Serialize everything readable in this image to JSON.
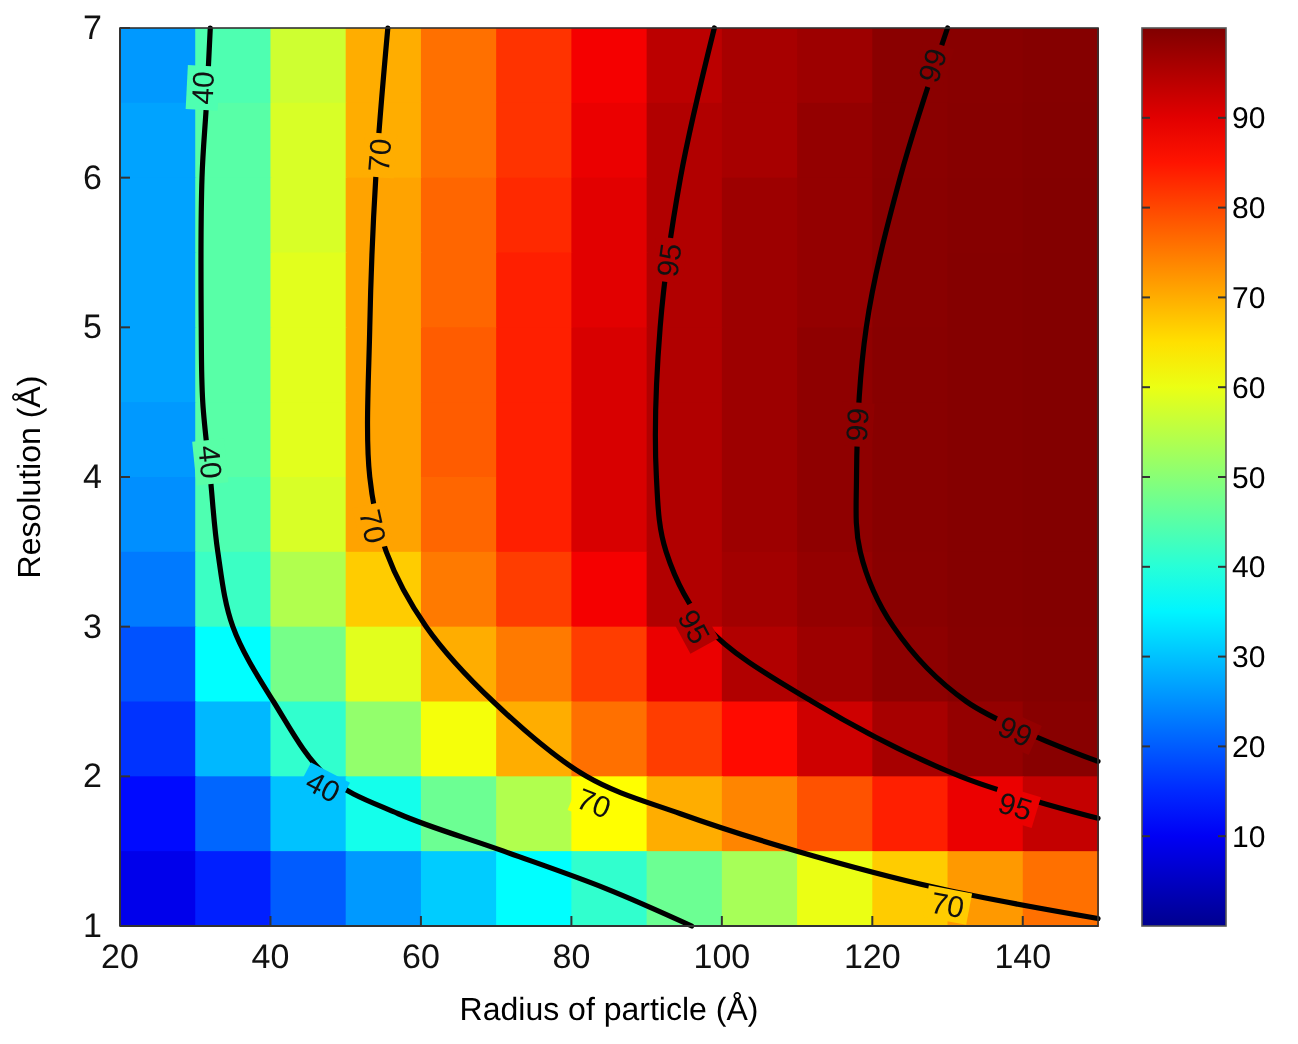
{
  "chart_data": {
    "type": "heatmap",
    "xlabel": "Radius of particle (Å)",
    "ylabel": "Resolution (Å)",
    "x": [
      25,
      35,
      45,
      55,
      65,
      75,
      85,
      95,
      105,
      115,
      125,
      135,
      145
    ],
    "y": [
      6.75,
      6.25,
      5.75,
      5.25,
      4.75,
      4.25,
      3.75,
      3.25,
      2.75,
      2.25,
      1.75,
      1.25
    ],
    "cells": [
      [
        26,
        44,
        57,
        70,
        76,
        82,
        88,
        94,
        96,
        97,
        99,
        99.2,
        99.5
      ],
      [
        27,
        45,
        58,
        70,
        76,
        82,
        89,
        95,
        96,
        98,
        99,
        99.3,
        99.6
      ],
      [
        27,
        45,
        58,
        71,
        77,
        83,
        90,
        95,
        97,
        98,
        99.1,
        99.4,
        99.7
      ],
      [
        27,
        45,
        59,
        71,
        77,
        84,
        90,
        95,
        97,
        98,
        99.1,
        99.5,
        99.7
      ],
      [
        27,
        45,
        59,
        71,
        78,
        84,
        91,
        95,
        97,
        98.5,
        99.2,
        99.5,
        99.7
      ],
      [
        26,
        45,
        59,
        71,
        78,
        84,
        91,
        95,
        97,
        98.5,
        99.2,
        99.5,
        99.7
      ],
      [
        25,
        44,
        58,
        71,
        77,
        84,
        91,
        95,
        97,
        98.5,
        99.2,
        99.5,
        99.7
      ],
      [
        23,
        42,
        54,
        67,
        75,
        81,
        88,
        95,
        96.5,
        98,
        99.1,
        99.5,
        99.7
      ],
      [
        19,
        36,
        48,
        59,
        70,
        75,
        81,
        89,
        95,
        97,
        98.7,
        99.4,
        99.6
      ],
      [
        16,
        29,
        41,
        51,
        61,
        70,
        76,
        81,
        86,
        92,
        96,
        98,
        99.2
      ],
      [
        12,
        21,
        30,
        38,
        47,
        54,
        62,
        70,
        74,
        79,
        84,
        89,
        93
      ],
      [
        9,
        14,
        20,
        26,
        31,
        36,
        41,
        47,
        53,
        60,
        67,
        72,
        76
      ]
    ],
    "xlim": [
      20,
      150
    ],
    "ylim": [
      1,
      7
    ],
    "xticks": [
      20,
      40,
      60,
      80,
      100,
      120,
      140
    ],
    "yticks": [
      1,
      2,
      3,
      4,
      5,
      6,
      7
    ],
    "clim": [
      0,
      100
    ],
    "cticks": [
      10,
      20,
      30,
      40,
      50,
      60,
      70,
      80,
      90
    ],
    "series": [
      {
        "type": "line",
        "color": "#000000",
        "x": [
          32,
          31.5,
          30.9,
          30.8,
          31,
          32,
          33,
          35,
          40.4,
          47.5,
          57,
          71,
          84.6,
          96
        ],
        "values": [
          7,
          6.5,
          6,
          5,
          4.5,
          4,
          3.5,
          3,
          2.5,
          2,
          1.75,
          1.5,
          1.25,
          1
        ]
      },
      {
        "type": "line",
        "color": "#000000",
        "x": [
          55.6,
          54,
          53.2,
          53.2,
          55.4,
          60.7,
          69.6,
          82,
          94.5,
          110,
          129,
          150
        ],
        "values": [
          7,
          6,
          5,
          4,
          3.5,
          3,
          2.5,
          2,
          1.75,
          1.5,
          1.25,
          1.05
        ]
      },
      {
        "type": "line",
        "color": "#000000",
        "x": [
          99,
          94.5,
          91.8,
          91.3,
          92.6,
          98,
          112,
          131.7,
          150
        ],
        "values": [
          7,
          6,
          5,
          4,
          3.5,
          3,
          2.5,
          2,
          1.72
        ]
      },
      {
        "type": "line",
        "color": "#000000",
        "x": [
          130,
          123.7,
          119.2,
          117.9,
          118.4,
          122.8,
          132.5,
          150
        ],
        "values": [
          7,
          6,
          5,
          4,
          3.5,
          3,
          2.5,
          2.1
        ]
      }
    ],
    "annotations": [
      {
        "text": "40",
        "x": 31,
        "y": 6.6
      },
      {
        "text": "40",
        "x": 32,
        "y": 4.1
      },
      {
        "text": "40",
        "x": 47,
        "y": 1.93
      },
      {
        "text": "70",
        "x": 54.5,
        "y": 6.15
      },
      {
        "text": "70",
        "x": 53.6,
        "y": 3.67
      },
      {
        "text": "70",
        "x": 83,
        "y": 1.82
      },
      {
        "text": "70",
        "x": 130,
        "y": 1.14
      },
      {
        "text": "95",
        "x": 93,
        "y": 5.45
      },
      {
        "text": "95",
        "x": 96.3,
        "y": 3.0
      },
      {
        "text": "95",
        "x": 139,
        "y": 1.8
      },
      {
        "text": "99",
        "x": 128,
        "y": 6.75
      },
      {
        "text": "99",
        "x": 118,
        "y": 4.35
      },
      {
        "text": "99",
        "x": 139,
        "y": 2.3
      }
    ]
  }
}
